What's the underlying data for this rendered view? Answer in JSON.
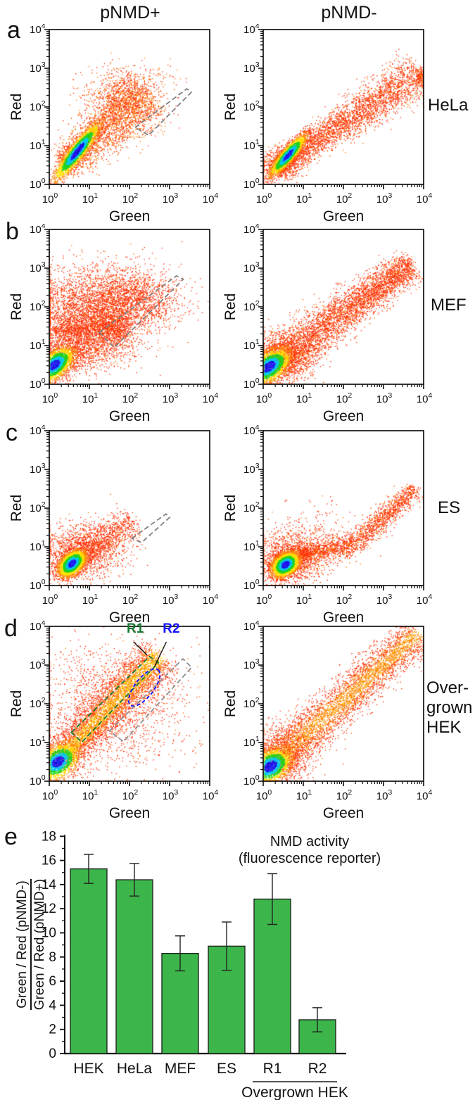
{
  "figure": {
    "panel_letters": [
      "a",
      "b",
      "c",
      "d",
      "e"
    ],
    "column_titles": [
      "pNMD+",
      "pNMD-"
    ],
    "row_labels": [
      "HeLa",
      "MEF",
      "ES"
    ],
    "row_label_overgrown_lines": [
      "Over-",
      "grown",
      "HEK"
    ]
  },
  "scatter_axes": {
    "x_label": "Green",
    "y_label": "Red",
    "scale": "log10",
    "range_exponents": [
      0,
      4
    ],
    "tick_exponents": [
      0,
      1,
      2,
      3,
      4
    ]
  },
  "colors": {
    "dot_red": "#ff2d00",
    "dot_orange": "#ff8400",
    "dot_orange2": "#ff7b00",
    "dot_yellow": "#ffdf00",
    "dot_green": "#1ed41e",
    "dot_cyan": "#00c8f0",
    "dot_blue": "#2a2aff",
    "dot_darkblue": "#1500cc",
    "bar_fill": "#3cb54a",
    "bar_edge": "#1a1a1a",
    "axis": "#111111",
    "gate_gray": "#808080",
    "gate_green": "#1a7a33",
    "gate_blue": "#1414ff"
  },
  "chart_data": [
    {
      "id": "a_left",
      "type": "scatter_density",
      "panel": "a",
      "column": "pNMD+",
      "cell_line": "HeLa",
      "seed": 101,
      "populations": [
        {
          "type": "band",
          "p0": [
            0.35,
            0.5
          ],
          "p1": [
            2.45,
            2.35
          ],
          "cross": [
            0.2,
            0.42
          ],
          "n": 2400,
          "cmap": "red",
          "orangeP": 0.45
        },
        {
          "type": "cloud",
          "c": [
            1.85,
            2.15
          ],
          "sx": 0.5,
          "sy": 0.38,
          "n": 900,
          "cmap": "red",
          "orangeP": 0.4
        },
        {
          "type": "cloud",
          "c": [
            2.3,
            2.7
          ],
          "sx": 0.45,
          "sy": 0.22,
          "n": 120,
          "cmap": "red",
          "orangeP": 0.3
        },
        {
          "type": "core",
          "c": [
            0.7,
            0.85
          ],
          "angle": 53,
          "sa": 0.46,
          "sc": 0.1,
          "n": 2600,
          "cmap": "jet"
        }
      ],
      "gates": [
        {
          "shape": "poly",
          "color": "#808080",
          "pts": [
            [
              2.14,
              1.47
            ],
            [
              3.43,
              2.47
            ],
            [
              3.54,
              2.38
            ],
            [
              2.48,
              1.27
            ]
          ]
        }
      ],
      "gate_labels": []
    },
    {
      "id": "a_right",
      "type": "scatter_density",
      "panel": "a",
      "column": "pNMD-",
      "cell_line": "HeLa",
      "seed": 102,
      "populations": [
        {
          "type": "band",
          "p0": [
            0.4,
            0.5
          ],
          "p1": [
            3.9,
            2.85
          ],
          "cross": [
            0.13,
            0.3
          ],
          "n": 3200,
          "cmap": "red",
          "orangeP": 0.18
        },
        {
          "type": "cloud",
          "c": [
            0.45,
            0.52
          ],
          "sx": 0.28,
          "sy": 0.2,
          "n": 700,
          "cmap": "red",
          "orangeP": 0.2
        },
        {
          "type": "core",
          "c": [
            0.62,
            0.75
          ],
          "angle": 50,
          "sa": 0.34,
          "sc": 0.085,
          "n": 2300,
          "cmap": "jet"
        },
        {
          "type": "cloud",
          "c": [
            3.93,
            2.78
          ],
          "sx": 0.07,
          "sy": 0.12,
          "n": 140,
          "cmap": "red",
          "orangeP": 0.25
        }
      ],
      "gates": [],
      "gate_labels": []
    },
    {
      "id": "b_left",
      "type": "scatter_density",
      "panel": "b",
      "column": "pNMD+",
      "cell_line": "MEF",
      "seed": 103,
      "populations": [
        {
          "type": "cloud",
          "c": [
            0.85,
            1.85
          ],
          "sx": 0.75,
          "sy": 0.55,
          "n": 3000,
          "cmap": "red",
          "orangeP": 0.12
        },
        {
          "type": "cloud",
          "c": [
            2.05,
            2.2
          ],
          "sx": 0.62,
          "sy": 0.42,
          "n": 1700,
          "cmap": "red",
          "orangeP": 0.1
        },
        {
          "type": "band",
          "p0": [
            0.08,
            0.55
          ],
          "p1": [
            1.9,
            1.45
          ],
          "cross": [
            0.28,
            0.38
          ],
          "n": 1600,
          "cmap": "red",
          "orangeP": 0.15
        },
        {
          "type": "band",
          "p0": [
            0.1,
            1.38
          ],
          "p1": [
            2.1,
            1.52
          ],
          "cross": [
            0.14,
            0.22
          ],
          "n": 700,
          "cmap": "red",
          "orangeP": 0.1
        },
        {
          "type": "core",
          "c": [
            0.13,
            0.5
          ],
          "angle": 42,
          "sa": 0.3,
          "sc": 0.16,
          "n": 2600,
          "cmap": "jet"
        }
      ],
      "gates": [
        {
          "shape": "poly",
          "color": "#808080",
          "pts": [
            [
              1.25,
              1.34
            ],
            [
              3.17,
              2.8
            ],
            [
              3.34,
              2.71
            ],
            [
              1.62,
              0.95
            ]
          ]
        }
      ],
      "gate_labels": []
    },
    {
      "id": "b_right",
      "type": "scatter_density",
      "panel": "b",
      "column": "pNMD-",
      "cell_line": "MEF",
      "seed": 104,
      "populations": [
        {
          "type": "band",
          "p0": [
            0.3,
            0.55
          ],
          "p1": [
            3.7,
            3.1
          ],
          "cross": [
            0.3,
            0.2
          ],
          "n": 4200,
          "cmap": "red",
          "orangeP": 0.15
        },
        {
          "type": "cloud",
          "c": [
            0.5,
            0.7
          ],
          "sx": 0.38,
          "sy": 0.3,
          "n": 900,
          "cmap": "red",
          "orangeP": 0.2
        },
        {
          "type": "core",
          "c": [
            0.14,
            0.45
          ],
          "angle": 38,
          "sa": 0.32,
          "sc": 0.18,
          "n": 2800,
          "cmap": "jet"
        }
      ],
      "gates": [],
      "gate_labels": []
    },
    {
      "id": "c_left",
      "type": "scatter_density",
      "panel": "c",
      "column": "pNMD+",
      "cell_line": "ES",
      "seed": 105,
      "populations": [
        {
          "type": "cloud",
          "c": [
            0.85,
            0.9
          ],
          "sx": 0.5,
          "sy": 0.33,
          "n": 1500,
          "cmap": "red",
          "orangeP": 0.12
        },
        {
          "type": "band",
          "p0": [
            0.9,
            0.95
          ],
          "p1": [
            2.15,
            1.62
          ],
          "cross": [
            0.16,
            0.26
          ],
          "n": 650,
          "cmap": "red",
          "orangeP": 0.08
        },
        {
          "type": "core",
          "c": [
            0.57,
            0.57
          ],
          "angle": 45,
          "sa": 0.21,
          "sc": 0.13,
          "n": 3200,
          "cmap": "jet"
        }
      ],
      "gates": [
        {
          "shape": "poly",
          "color": "#808080",
          "pts": [
            [
              2.06,
              1.22
            ],
            [
              2.91,
              1.85
            ],
            [
              3.0,
              1.76
            ],
            [
              2.3,
              1.11
            ]
          ]
        }
      ],
      "gate_labels": []
    },
    {
      "id": "c_right",
      "type": "scatter_density",
      "panel": "c",
      "column": "pNMD-",
      "cell_line": "ES",
      "seed": 106,
      "populations": [
        {
          "type": "cloud",
          "c": [
            0.72,
            0.72
          ],
          "sx": 0.42,
          "sy": 0.3,
          "n": 1300,
          "cmap": "red",
          "orangeP": 0.15
        },
        {
          "type": "band",
          "p0": [
            0.9,
            0.8
          ],
          "p1": [
            2.25,
            1.05
          ],
          "cross": [
            0.11,
            0.16
          ],
          "n": 900,
          "cmap": "red",
          "orangeP": 0.2
        },
        {
          "type": "band",
          "p0": [
            2.25,
            1.05
          ],
          "p1": [
            3.8,
            2.5
          ],
          "cross": [
            0.15,
            0.12
          ],
          "n": 1100,
          "cmap": "red",
          "orangeP": 0.2
        },
        {
          "type": "cloud",
          "c": [
            1.2,
            1.35
          ],
          "sx": 0.55,
          "sy": 0.4,
          "n": 220,
          "cmap": "red",
          "orangeP": 0.1
        },
        {
          "type": "core",
          "c": [
            0.56,
            0.54
          ],
          "angle": 40,
          "sa": 0.2,
          "sc": 0.14,
          "n": 3200,
          "cmap": "jet"
        }
      ],
      "gates": [],
      "gate_labels": []
    },
    {
      "id": "d_left",
      "type": "scatter_density",
      "panel": "d",
      "column": "pNMD+",
      "cell_line": "Overgrown HEK",
      "seed": 107,
      "populations": [
        {
          "type": "cloud",
          "c": [
            1.5,
            1.9
          ],
          "sx": 1.0,
          "sy": 0.85,
          "n": 1600,
          "cmap": "red",
          "orangeP": 0.12
        },
        {
          "type": "band",
          "p0": [
            0.2,
            0.5
          ],
          "p1": [
            2.75,
            3.25
          ],
          "cross": [
            0.22,
            0.3
          ],
          "n": 4200,
          "cmap": "hot",
          "warm": 0.35
        },
        {
          "type": "core",
          "c": [
            0.22,
            0.5
          ],
          "angle": 40,
          "sa": 0.3,
          "sc": 0.2,
          "n": 1800,
          "cmap": "jet"
        }
      ],
      "gates": [
        {
          "shape": "poly",
          "color": "#1a7a33",
          "pts": [
            [
              0.55,
              1.26
            ],
            [
              2.5,
              3.22
            ],
            [
              2.72,
              3.06
            ],
            [
              0.81,
              1.01
            ]
          ]
        },
        {
          "shape": "ellipse",
          "color": "#1414ff",
          "c": [
            2.37,
            2.42
          ],
          "rx": 0.56,
          "ry": 0.24,
          "rot": -52
        },
        {
          "shape": "poly",
          "color": "#909090",
          "pts": [
            [
              1.5,
              1.3
            ],
            [
              3.33,
              3.16
            ],
            [
              3.55,
              2.94
            ],
            [
              1.85,
              1.02
            ]
          ]
        }
      ],
      "gate_labels": [
        {
          "text": "R1",
          "color": "#1a7a33",
          "at": [
            1.93,
            3.84
          ],
          "line": [
            [
              2.1,
              3.6
            ],
            [
              2.44,
              3.26
            ]
          ]
        },
        {
          "text": "R2",
          "color": "#1414ff",
          "at": [
            2.83,
            3.84
          ],
          "line": [
            [
              2.92,
              3.6
            ],
            [
              2.62,
              2.95
            ]
          ]
        }
      ]
    },
    {
      "id": "d_right",
      "type": "scatter_density",
      "panel": "d",
      "column": "pNMD-",
      "cell_line": "Overgrown HEK",
      "seed": 108,
      "populations": [
        {
          "type": "band",
          "p0": [
            0.25,
            0.45
          ],
          "p1": [
            3.85,
            3.8
          ],
          "cross": [
            0.28,
            0.22
          ],
          "n": 4200,
          "cmap": "hot",
          "warm": 0.12
        },
        {
          "type": "cloud",
          "c": [
            0.55,
            0.75
          ],
          "sx": 0.4,
          "sy": 0.38,
          "n": 800,
          "cmap": "red",
          "orangeP": 0.2
        },
        {
          "type": "core",
          "c": [
            0.18,
            0.38
          ],
          "angle": 36,
          "sa": 0.3,
          "sc": 0.2,
          "n": 2200,
          "cmap": "jet"
        }
      ],
      "gates": [],
      "gate_labels": []
    },
    {
      "id": "e",
      "type": "bar",
      "panel": "e",
      "title_lines": [
        "NMD activity",
        "(fluorescence reporter)"
      ],
      "categories": [
        "HEK",
        "HeLa",
        "MEF",
        "ES",
        "R1",
        "R2"
      ],
      "values": [
        15.3,
        14.4,
        8.3,
        8.9,
        12.8,
        2.8
      ],
      "errors": [
        1.2,
        1.35,
        1.45,
        2.0,
        2.1,
        1.0
      ],
      "ylim": [
        0,
        18
      ],
      "ytick_step": 2,
      "ylabel_numerator": "Green / Red (pNMD-)",
      "ylabel_denominator": "Green / Red (pNMD+)",
      "group_label": {
        "text": "Overgrown HEK",
        "from": "R1",
        "to": "R2"
      },
      "bar_color": "#3cb54a",
      "legend": "none",
      "grid": "off"
    }
  ]
}
